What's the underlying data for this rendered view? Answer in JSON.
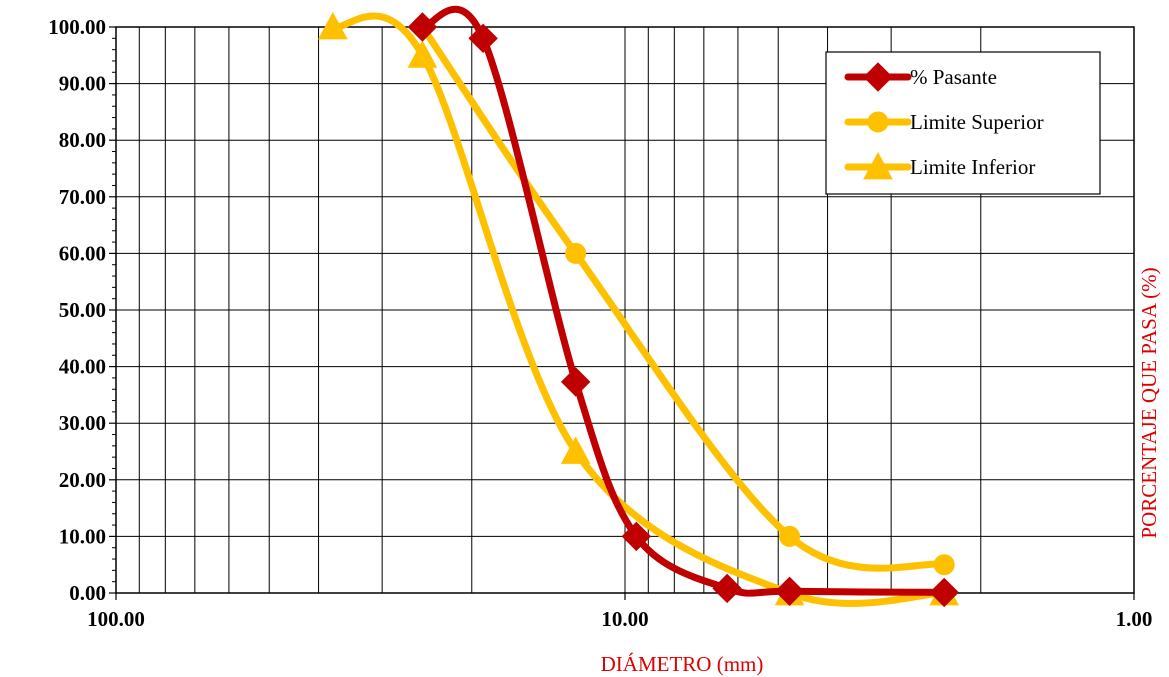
{
  "chart_data": {
    "type": "line",
    "xlabel": "DIÁMETRO (mm)",
    "ylabel": "PORCENTAJE QUE PASA (%)",
    "x_scale": "log-reversed",
    "xlim": [
      100,
      1
    ],
    "ylim": [
      0,
      100
    ],
    "x_tick_labels": [
      "100.00",
      "10.00",
      "1.00"
    ],
    "y_tick_labels": [
      "0.00",
      "10.00",
      "20.00",
      "30.00",
      "40.00",
      "50.00",
      "60.00",
      "70.00",
      "80.00",
      "90.00",
      "100.00"
    ],
    "grid": true,
    "legend_position": "top-right",
    "series": [
      {
        "name": "% Pasante",
        "color": "#c00000",
        "marker": "diamond",
        "x": [
          25,
          19,
          12.5,
          9.5,
          6.3,
          4.75,
          2.36
        ],
        "y": [
          100,
          98,
          37.3,
          10,
          0.8,
          0.3,
          0.1
        ]
      },
      {
        "name": "Limite Superior",
        "color": "#ffc000",
        "marker": "circle",
        "x": [
          25,
          12.5,
          4.75,
          2.36
        ],
        "y": [
          100,
          60,
          10,
          5
        ]
      },
      {
        "name": "Limite Inferior",
        "color": "#ffc000",
        "marker": "triangle",
        "x": [
          37.5,
          25,
          12.5,
          4.75,
          2.36
        ],
        "y": [
          100,
          95,
          25,
          0,
          0
        ]
      }
    ]
  }
}
